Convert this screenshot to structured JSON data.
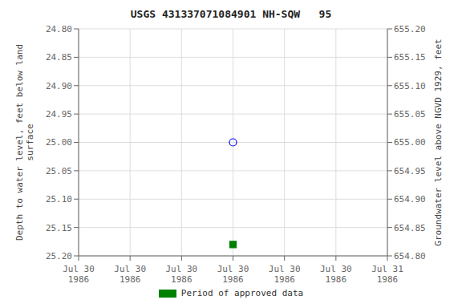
{
  "chart_data": {
    "type": "scatter",
    "title": "USGS 431337071084901 NH-SQW   95",
    "ylabel": "Depth to water level, feet below land\n surface",
    "y2label": "Groundwater level above NGVD 1929, feet",
    "categories": [
      "Jul 30\n1986",
      "Jul 30\n1986",
      "Jul 30\n1986",
      "Jul 30\n1986",
      "Jul 30\n1986",
      "Jul 30\n1986",
      "Jul 31\n1986"
    ],
    "series": [
      {
        "color": "blue",
        "marker": "open_circle",
        "values": [
          null,
          null,
          null,
          25.0,
          null,
          null,
          null
        ]
      },
      {
        "name": "Period of approved data",
        "color": "green",
        "marker": "square",
        "values": [
          null,
          null,
          null,
          25.18,
          null,
          null,
          null
        ]
      }
    ],
    "ylim": [
      25.2,
      24.8
    ],
    "yticks": [
      {
        "value": 24.8,
        "label": "24.80"
      },
      {
        "value": 24.85,
        "label": "24.85"
      },
      {
        "value": 24.9,
        "label": "24.90"
      },
      {
        "value": 24.95,
        "label": "24.95"
      },
      {
        "value": 25.0,
        "label": "25.00"
      },
      {
        "value": 25.05,
        "label": "25.05"
      },
      {
        "value": 25.1,
        "label": "25.10"
      },
      {
        "value": 25.15,
        "label": "25.15"
      },
      {
        "value": 25.2,
        "label": "25.20"
      }
    ],
    "y2lim": [
      654.8,
      655.2
    ],
    "y2ticks": [
      {
        "value": 654.8,
        "label": "654.80"
      },
      {
        "value": 654.85,
        "label": "654.85"
      },
      {
        "value": 654.9,
        "label": "654.90"
      },
      {
        "value": 654.95,
        "label": "654.95"
      },
      {
        "value": 655.0,
        "label": "655.00"
      },
      {
        "value": 655.05,
        "label": "655.05"
      },
      {
        "value": 655.1,
        "label": "655.10"
      },
      {
        "value": 655.15,
        "label": "655.15"
      },
      {
        "value": 655.2,
        "label": "655.20"
      }
    ],
    "grid": true,
    "legend": "bottom"
  }
}
